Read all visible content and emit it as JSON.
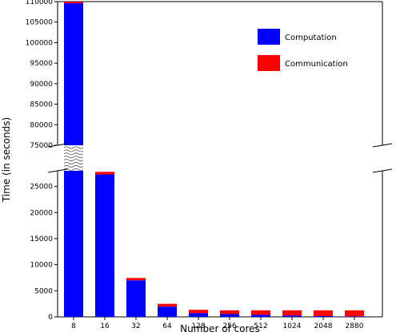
{
  "chart_data": {
    "type": "bar",
    "stacked": true,
    "broken_y_axis": true,
    "xlabel": "Number of cores",
    "ylabel": "Time (in seconds)",
    "categories": [
      "8",
      "16",
      "32",
      "64",
      "128",
      "256",
      "512",
      "1024",
      "2048",
      "2880"
    ],
    "series": [
      {
        "name": "Computation",
        "color": "#0000ff",
        "values": [
          109600,
          27300,
          7000,
          1950,
          700,
          550,
          400,
          250,
          150,
          100
        ]
      },
      {
        "name": "Communication",
        "color": "#ff0000",
        "values": [
          400,
          500,
          450,
          550,
          650,
          700,
          850,
          1000,
          1100,
          1150
        ]
      }
    ],
    "ylim_lower": [
      0,
      28000
    ],
    "ylim_upper": [
      75000,
      110000
    ],
    "yticks_lower": [
      "0",
      "5000",
      "10000",
      "15000",
      "20000",
      "25000"
    ],
    "yticks_upper": [
      "75000",
      "80000",
      "85000",
      "90000",
      "95000",
      "100000",
      "105000",
      "110000"
    ],
    "legend_position": "top-right",
    "grid": false
  }
}
